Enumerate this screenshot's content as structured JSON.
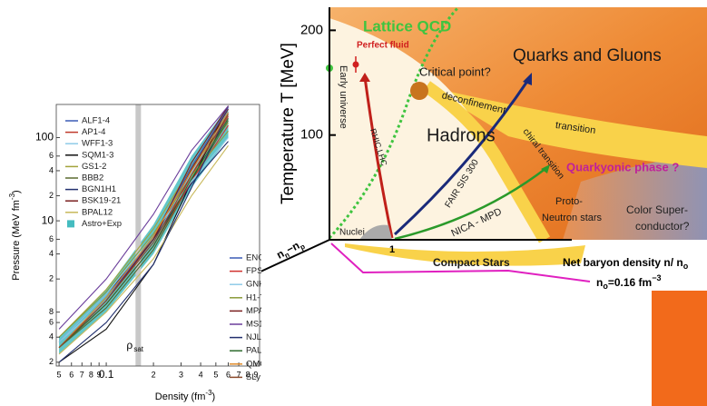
{
  "chart_data": [
    {
      "type": "line",
      "y_label": [
        "Pressure (MeV fm",
        "-3",
        ")"
      ],
      "x_label": [
        "Density (fm",
        "-3",
        ")"
      ],
      "xlim": [
        0.048,
        0.95
      ],
      "ylim": [
        0.18,
        250
      ],
      "log_x": true,
      "log_y": true,
      "xticks": [
        {
          "value": 0.05,
          "label": "5"
        },
        {
          "value": 0.06,
          "label": "6"
        },
        {
          "value": 0.07,
          "label": "7"
        },
        {
          "value": 0.08,
          "label": "8"
        },
        {
          "value": 0.09,
          "label": "9"
        },
        0.1,
        {
          "value": 0.2,
          "label": "2"
        },
        {
          "value": 0.3,
          "label": "3"
        },
        {
          "value": 0.4,
          "label": "4"
        },
        {
          "value": 0.5,
          "label": "5"
        },
        {
          "value": 0.6,
          "label": "6"
        },
        {
          "value": 0.7,
          "label": "7"
        },
        {
          "value": 0.8,
          "label": "8"
        },
        {
          "value": 0.9,
          "label": "9"
        }
      ],
      "yticks": [
        {
          "value": 0.2,
          "label": "2"
        },
        {
          "value": 0.4,
          "label": "4"
        },
        {
          "value": 0.6,
          "label": "6"
        },
        {
          "value": 0.8,
          "label": "8"
        },
        {
          "value": 2,
          "label": "2"
        },
        4,
        6,
        10,
        {
          "value": 20,
          "label": "2"
        },
        {
          "value": 40,
          "label": "4"
        },
        {
          "value": 60,
          "label": "6"
        },
        100
      ],
      "annotation": {
        "symbol": "ρ",
        "subscript": "sat",
        "x": 0.16
      },
      "band": {
        "name": "Astro+Exp",
        "color": "#45bcc0",
        "x": [
          0.05,
          0.1,
          0.2,
          0.35,
          0.6
        ],
        "lower": [
          0.25,
          0.8,
          4,
          25,
          100
        ],
        "upper": [
          0.4,
          1.5,
          9,
          60,
          240
        ]
      },
      "series": [
        {
          "name": "ALF1-4",
          "color": "#3b5bb5",
          "x": [
            0.05,
            0.1,
            0.2,
            0.35,
            0.6
          ],
          "values": [
            0.3,
            1.2,
            6,
            40,
            200
          ]
        },
        {
          "name": "AP1-4",
          "color": "#c0392b",
          "x": [
            0.05,
            0.1,
            0.2,
            0.35,
            0.6
          ],
          "values": [
            0.3,
            1.0,
            5,
            35,
            180
          ]
        },
        {
          "name": "WFF1-3",
          "color": "#8fcbe8",
          "x": [
            0.05,
            0.1,
            0.2,
            0.35,
            0.6
          ],
          "values": [
            0.35,
            1.1,
            5.5,
            38,
            190
          ]
        },
        {
          "name": "SQM1-3",
          "color": "#111111",
          "x": [
            0.05,
            0.1,
            0.2,
            0.35,
            0.6
          ],
          "values": [
            0.2,
            0.5,
            3,
            30,
            240
          ]
        },
        {
          "name": "GS1-2",
          "color": "#a3a33a",
          "x": [
            0.05,
            0.1,
            0.2,
            0.35,
            0.6
          ],
          "values": [
            0.4,
            1.5,
            8,
            45,
            150
          ]
        },
        {
          "name": "BBB2",
          "color": "#5a6b2f",
          "x": [
            0.05,
            0.1,
            0.2,
            0.35,
            0.6
          ],
          "values": [
            0.3,
            0.9,
            4.5,
            30,
            160
          ]
        },
        {
          "name": "BGN1H1",
          "color": "#22306e",
          "x": [
            0.05,
            0.1,
            0.2,
            0.35,
            0.6
          ],
          "values": [
            0.35,
            1.3,
            6,
            28,
            90
          ]
        },
        {
          "name": "BSK19-21",
          "color": "#7a1f1f",
          "x": [
            0.05,
            0.1,
            0.2,
            0.35,
            0.6
          ],
          "values": [
            0.3,
            1.1,
            6,
            42,
            220
          ]
        },
        {
          "name": "BPAL12",
          "color": "#c8b85a",
          "x": [
            0.05,
            0.1,
            0.2,
            0.35,
            0.6
          ],
          "values": [
            0.25,
            0.8,
            3.5,
            20,
            80
          ]
        },
        {
          "name": "ENG",
          "color": "#3b5bb5",
          "x": [
            0.05,
            0.1,
            0.2,
            0.35,
            0.6
          ],
          "values": [
            0.3,
            1.1,
            6.5,
            45,
            230
          ]
        },
        {
          "name": "FPS",
          "color": "#d0312d",
          "x": [
            0.05,
            0.1,
            0.2,
            0.35,
            0.6
          ],
          "values": [
            0.3,
            1.0,
            5,
            30,
            140
          ]
        },
        {
          "name": "GNH3",
          "color": "#8fcbe8",
          "x": [
            0.05,
            0.1,
            0.2,
            0.35,
            0.6
          ],
          "values": [
            0.35,
            1.3,
            7,
            30,
            100
          ]
        },
        {
          "name": "H1-7",
          "color": "#8a9a3a",
          "x": [
            0.05,
            0.1,
            0.2,
            0.35,
            0.6
          ],
          "values": [
            0.4,
            1.4,
            7,
            35,
            120
          ]
        },
        {
          "name": "MPA1",
          "color": "#7a1f1f",
          "x": [
            0.05,
            0.1,
            0.2,
            0.35,
            0.6
          ],
          "values": [
            0.3,
            1.1,
            6,
            50,
            240
          ]
        },
        {
          "name": "MS1-2",
          "color": "#6a3d9a",
          "x": [
            0.05,
            0.1,
            0.2,
            0.35,
            0.6
          ],
          "values": [
            0.5,
            2,
            12,
            70,
            240
          ]
        },
        {
          "name": "NJL",
          "color": "#22306e",
          "x": [
            0.05,
            0.1,
            0.2,
            0.35,
            0.6
          ],
          "values": [
            0.2,
            0.6,
            3,
            25,
            200
          ]
        },
        {
          "name": "PAL6",
          "color": "#2e6b2e",
          "x": [
            0.05,
            0.1,
            0.2,
            0.35,
            0.6
          ],
          "values": [
            0.3,
            1.0,
            5,
            32,
            170
          ]
        },
        {
          "name": "QMC",
          "color": "#e08a2a",
          "x": [
            0.05,
            0.1,
            0.2,
            0.35,
            0.6
          ],
          "values": [
            0.3,
            1.2,
            6.5,
            40,
            200
          ]
        },
        {
          "name": "SLy",
          "color": "#8b4a2b",
          "x": [
            0.05,
            0.1,
            0.2,
            0.35,
            0.6
          ],
          "values": [
            0.3,
            1.1,
            5.5,
            36,
            190
          ]
        }
      ]
    },
    {
      "type": "diagram",
      "y_label": "Temperature T [MeV]",
      "ylim": [
        0,
        222
      ],
      "yticks": [
        100,
        200
      ],
      "labels": {
        "lattice": "Lattice  QCD",
        "qgp": "Quarks and Gluons",
        "early": "Early universe",
        "fluid": "Perfect fluid",
        "critical": "Critical point?",
        "deconf": "deconfinement",
        "transition": "transition",
        "hadrons": "Hadrons",
        "rhic": "RHIC,LHC",
        "fair": "FAIR SIS 300",
        "chiral": "chiral transition",
        "quarkyonic": "Quarkyonic phase ?",
        "nica": "NICA - MPD",
        "proto1": "Proto-",
        "proto2": "Neutron stars",
        "csc1": "Color Super-",
        "csc2": "conductor?",
        "nuclei": "Nuclei",
        "one": "1",
        "compact": "Compact Stars"
      },
      "iso_label": [
        "n",
        "n",
        "−n",
        "p"
      ],
      "x_label": [
        "Net baryon density n/  n",
        "o"
      ],
      "n0_label": [
        "n",
        "o",
        "=0.16 fm",
        "−3"
      ]
    }
  ]
}
